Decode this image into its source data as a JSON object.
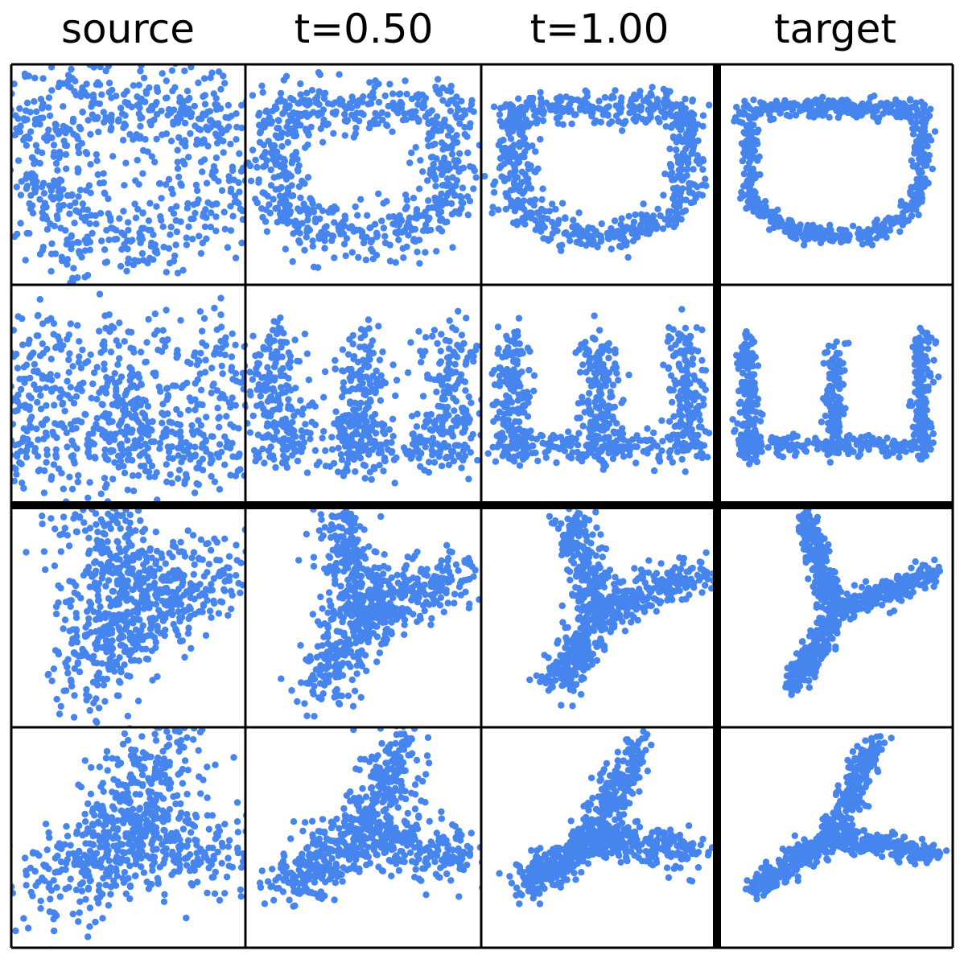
{
  "chart_data": {
    "type": "scatter",
    "layout": "grid-4x4",
    "point_color": "#4684ee",
    "grid_line_color": "#000000",
    "axes_visible": false,
    "grid": false,
    "legend": "none",
    "columns": [
      {
        "title": "source"
      },
      {
        "title": "t=0.50"
      },
      {
        "title": "t=1.00"
      },
      {
        "title": "target"
      }
    ],
    "rows": [
      {
        "shape": "D",
        "panels": [
          {
            "column": "source",
            "description": "noisy scattered cloud, roughly ring-like"
          },
          {
            "column": "t=0.50",
            "description": "partially formed ring"
          },
          {
            "column": "t=1.00",
            "description": "near-complete ring"
          },
          {
            "column": "target",
            "description": "D-shaped ring"
          }
        ]
      },
      {
        "shape": "W",
        "panels": [
          {
            "column": "source",
            "description": "noisy scattered cloud"
          },
          {
            "column": "t=0.50",
            "description": "partially formed three-pronged comb"
          },
          {
            "column": "t=1.00",
            "description": "near-complete three-pronged comb"
          },
          {
            "column": "target",
            "description": "three-pronged comb (rotated E)"
          }
        ]
      },
      {
        "shape": "Y",
        "panels": [
          {
            "column": "source",
            "description": "noisy Y-like cloud"
          },
          {
            "column": "t=0.50",
            "description": "partially formed Y"
          },
          {
            "column": "t=1.00",
            "description": "near-complete Y"
          },
          {
            "column": "target",
            "description": "Y shape"
          }
        ]
      },
      {
        "shape": "lambda",
        "panels": [
          {
            "column": "source",
            "description": "noisy wedge-like cloud"
          },
          {
            "column": "t=0.50",
            "description": "partially formed lambda"
          },
          {
            "column": "t=1.00",
            "description": "near-complete lambda"
          },
          {
            "column": "target",
            "description": "lambda / rotated Y shape"
          }
        ]
      }
    ]
  }
}
